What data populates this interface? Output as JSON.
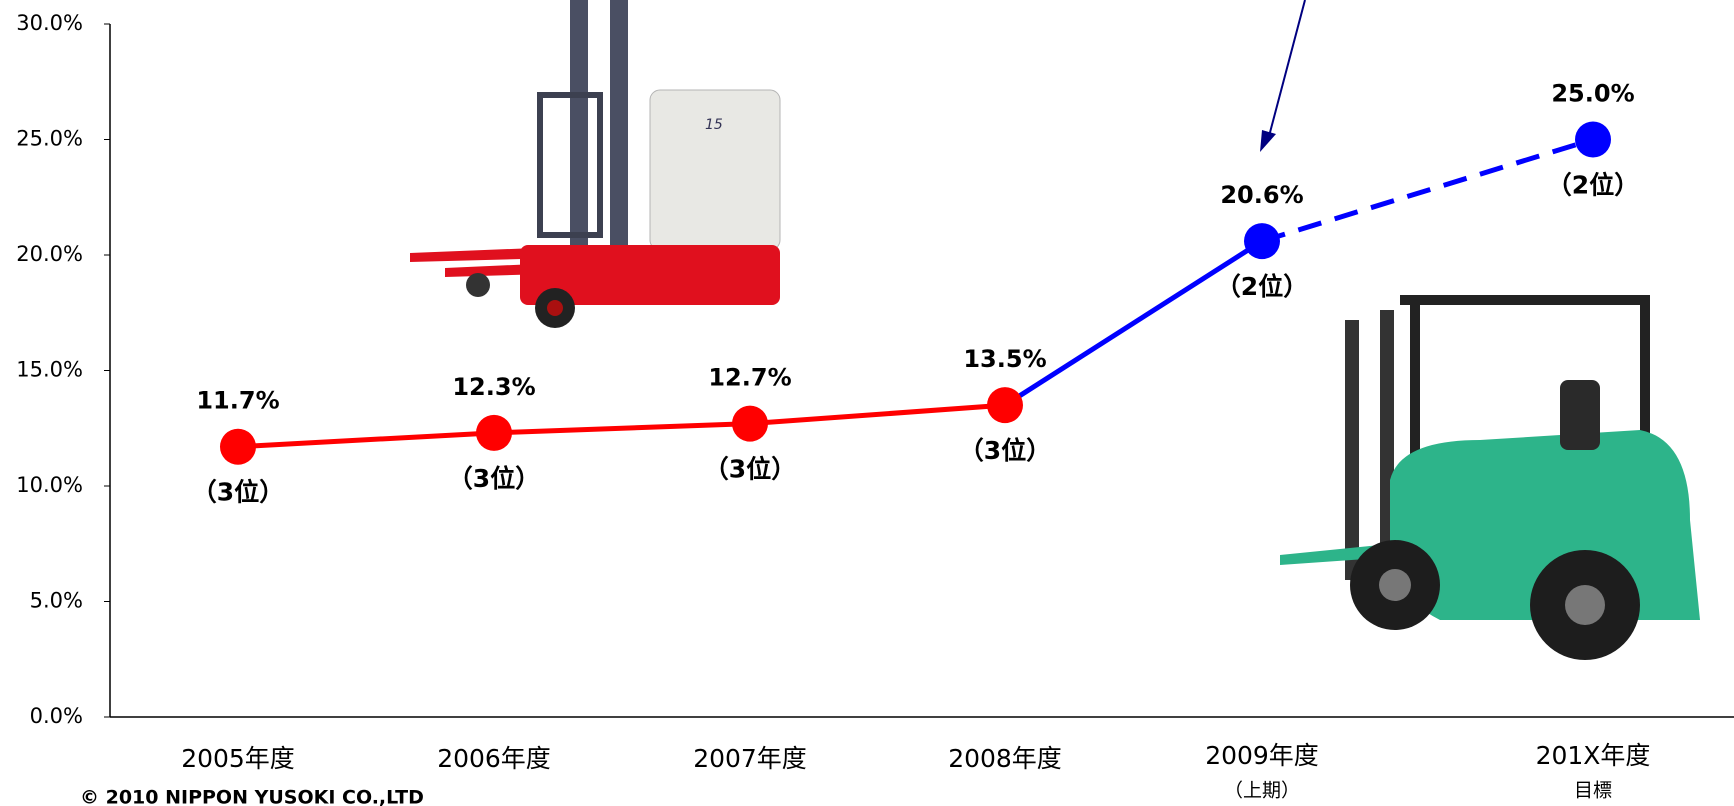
{
  "chart_data": {
    "type": "line",
    "categories": [
      "2005年度",
      "2006年度",
      "2007年度",
      "2008年度",
      "2009年度",
      "201X年度"
    ],
    "category_notes": [
      null,
      null,
      null,
      null,
      "（上期）",
      "目標"
    ],
    "series": [
      {
        "values": [
          11.7,
          12.3,
          12.7,
          13.5,
          20.6,
          25.0
        ],
        "value_labels": [
          "11.7%",
          "12.3%",
          "12.7%",
          "13.5%",
          "20.6%",
          "25.0%"
        ],
        "rank_labels": [
          "（3位）",
          "（3位）",
          "（3位）",
          "（3位）",
          "（2位）",
          "（2位）"
        ],
        "point_colors": [
          "#ff0000",
          "#ff0000",
          "#ff0000",
          "#ff0000",
          "#0000ff",
          "#0000ff"
        ],
        "segment_colors": [
          "#ff0000",
          "#ff0000",
          "#ff0000",
          "#0000ff",
          "#0000ff"
        ],
        "segment_dashed": [
          false,
          false,
          false,
          false,
          true
        ]
      }
    ],
    "ylim": [
      0,
      30
    ],
    "yticks": [
      {
        "value": 0,
        "label": "0.0%"
      },
      {
        "value": 5,
        "label": "5.0%"
      },
      {
        "value": 10,
        "label": "10.0%"
      },
      {
        "value": 15,
        "label": "15.0%"
      },
      {
        "value": 20,
        "label": "20.0%"
      },
      {
        "value": 25,
        "label": "25.0%"
      },
      {
        "value": 30,
        "label": "30.0%"
      }
    ],
    "footer": "© 2010 NIPPON YUSOKI CO.,LTD"
  }
}
